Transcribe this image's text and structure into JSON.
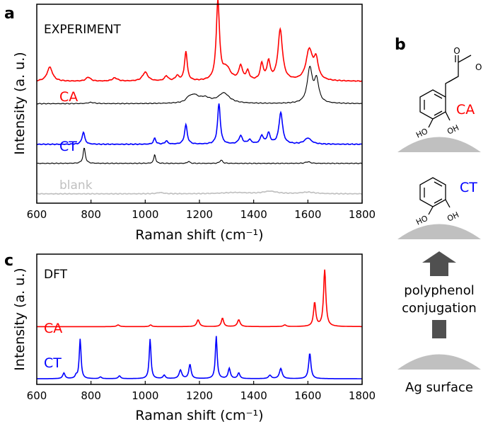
{
  "panels": {
    "a": {
      "label": "a",
      "annotation": "EXPERIMENT"
    },
    "b": {
      "label": "b"
    },
    "c": {
      "label": "c",
      "annotation": "DFT"
    }
  },
  "colors": {
    "CA": "#ff0000",
    "CT": "#0000ff",
    "black": "#000000",
    "blank": "#c0c0c0",
    "surface": "#c0c0c0",
    "arrow": "#505050"
  },
  "chart_data": [
    {
      "type": "line",
      "panel": "a",
      "title": "",
      "annotation": "EXPERIMENT",
      "xlabel": "Raman shift (cm⁻¹)",
      "ylabel": "Intensity (a. u.)",
      "xlim": [
        600,
        1800
      ],
      "xticks": [
        600,
        800,
        1000,
        1200,
        1400,
        1600,
        1800
      ],
      "y_ticks_shown": false,
      "grid": false,
      "series": [
        {
          "name": "CA",
          "color": "#ff0000",
          "baseline": 3.0,
          "peaks": [
            [
              648,
              0.35,
              12
            ],
            [
              790,
              0.1,
              10
            ],
            [
              888,
              0.08,
              12
            ],
            [
              1000,
              0.22,
              12
            ],
            [
              1078,
              0.12,
              8
            ],
            [
              1118,
              0.12,
              8
            ],
            [
              1150,
              0.72,
              6
            ],
            [
              1268,
              1.95,
              7
            ],
            [
              1300,
              0.3,
              18
            ],
            [
              1352,
              0.35,
              8
            ],
            [
              1378,
              0.22,
              7
            ],
            [
              1430,
              0.4,
              7
            ],
            [
              1455,
              0.45,
              7
            ],
            [
              1498,
              1.25,
              10
            ],
            [
              1605,
              0.75,
              14
            ],
            [
              1630,
              0.48,
              10
            ]
          ]
        },
        {
          "name": "",
          "color": "#000000",
          "baseline": 2.45,
          "peaks": [
            [
              800,
              0.03,
              15
            ],
            [
              1160,
              0.08,
              10
            ],
            [
              1180,
              0.18,
              20
            ],
            [
              1220,
              0.12,
              25
            ],
            [
              1290,
              0.25,
              25
            ],
            [
              1607,
              0.85,
              11
            ],
            [
              1632,
              0.55,
              10
            ]
          ]
        },
        {
          "name": "CT",
          "color": "#0000ff",
          "baseline": 1.45,
          "peaks": [
            [
              772,
              0.3,
              6
            ],
            [
              1035,
              0.15,
              5
            ],
            [
              1078,
              0.08,
              6
            ],
            [
              1150,
              0.48,
              6
            ],
            [
              1272,
              1.0,
              6
            ],
            [
              1352,
              0.2,
              8
            ],
            [
              1385,
              0.1,
              8
            ],
            [
              1430,
              0.2,
              7
            ],
            [
              1455,
              0.26,
              7
            ],
            [
              1500,
              0.78,
              8
            ],
            [
              1600,
              0.15,
              15
            ]
          ]
        },
        {
          "name": "",
          "color": "#000000",
          "baseline": 0.98,
          "peaks": [
            [
              775,
              0.38,
              5
            ],
            [
              1035,
              0.22,
              4
            ],
            [
              1160,
              0.05,
              5
            ],
            [
              1280,
              0.08,
              6
            ],
            [
              1600,
              0.04,
              10
            ]
          ]
        },
        {
          "name": "blank",
          "color": "#c0c0c0",
          "baseline": 0.23,
          "peaks": [
            [
              1055,
              0.03,
              15
            ],
            [
              1330,
              0.03,
              60
            ],
            [
              1460,
              0.06,
              30
            ],
            [
              1600,
              0.04,
              30
            ]
          ]
        }
      ]
    },
    {
      "type": "line",
      "panel": "c",
      "title": "",
      "annotation": "DFT",
      "xlabel": "Raman shift (cm⁻¹)",
      "ylabel": "Intensity (a. u.)",
      "xlim": [
        600,
        1800
      ],
      "xticks": [
        600,
        800,
        1000,
        1200,
        1400,
        1600,
        1800
      ],
      "y_ticks_shown": false,
      "grid": false,
      "series": [
        {
          "name": "CA",
          "color": "#ff0000",
          "baseline": 0.92,
          "peaks": [
            [
              900,
              0.03,
              6
            ],
            [
              1020,
              0.03,
              5
            ],
            [
              1195,
              0.12,
              6
            ],
            [
              1285,
              0.15,
              5
            ],
            [
              1345,
              0.12,
              6
            ],
            [
              1515,
              0.03,
              6
            ],
            [
              1625,
              0.42,
              5
            ],
            [
              1662,
              1.0,
              5
            ]
          ]
        },
        {
          "name": "CT",
          "color": "#0000ff",
          "baseline": 0.0,
          "peaks": [
            [
              700,
              0.1,
              5
            ],
            [
              745,
              0.05,
              4
            ],
            [
              760,
              0.7,
              4
            ],
            [
              835,
              0.03,
              5
            ],
            [
              905,
              0.05,
              5
            ],
            [
              1018,
              0.7,
              4
            ],
            [
              1070,
              0.06,
              5
            ],
            [
              1130,
              0.15,
              6
            ],
            [
              1165,
              0.25,
              5
            ],
            [
              1262,
              0.75,
              4
            ],
            [
              1310,
              0.18,
              5
            ],
            [
              1345,
              0.1,
              5
            ],
            [
              1460,
              0.06,
              6
            ],
            [
              1500,
              0.18,
              6
            ],
            [
              1607,
              0.45,
              5
            ]
          ]
        }
      ]
    }
  ],
  "schematic": {
    "top_molecule_label": "CA",
    "top_molecule_atoms": [
      "O",
      "O",
      "HO",
      "OH"
    ],
    "middle_molecule_label": "CT",
    "middle_molecule_atoms": [
      "HO",
      "OH"
    ],
    "arrow_text_line1": "polyphenol",
    "arrow_text_line2": "conjugation",
    "surface_label": "Ag surface"
  }
}
